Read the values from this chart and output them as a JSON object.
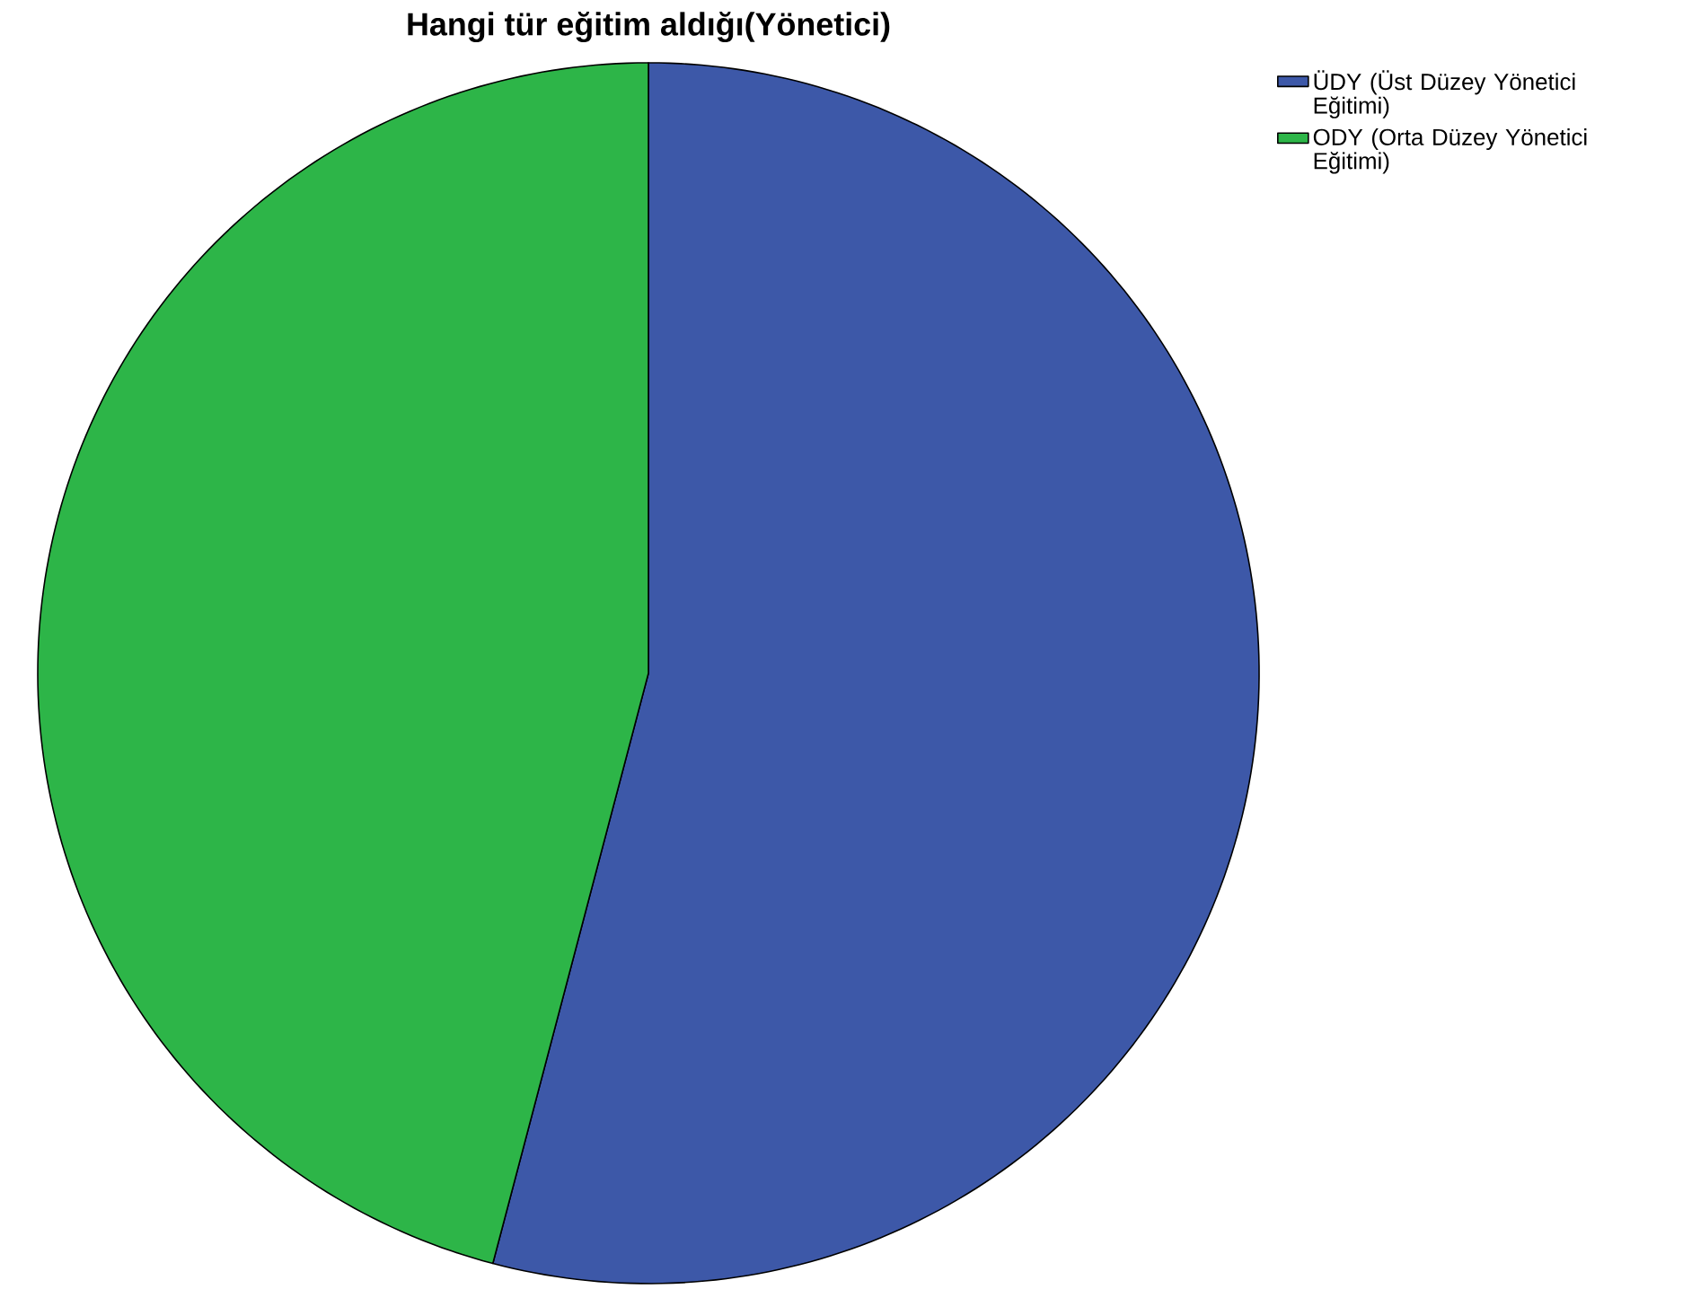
{
  "chart_data": {
    "type": "pie",
    "title": "Hangi tür eğitim aldığı(Yönetici)",
    "categories": [
      "ÜDY (Üst Düzey Yönetici Eğitimi)",
      "ODY (Orta Düzey Yönetici Eğitimi)"
    ],
    "values": [
      54.1,
      45.9
    ],
    "colors": [
      "#3d58a8",
      "#2db548"
    ],
    "legend": "top right"
  }
}
